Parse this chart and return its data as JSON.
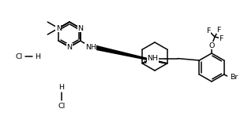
{
  "bg_color": "#ffffff",
  "line_color": "#000000",
  "lw": 1.1,
  "fs": 6.8,
  "fig_width": 3.09,
  "fig_height": 1.48,
  "dpi": 100,
  "xlim": [
    0,
    309
  ],
  "ylim": [
    148,
    0
  ]
}
